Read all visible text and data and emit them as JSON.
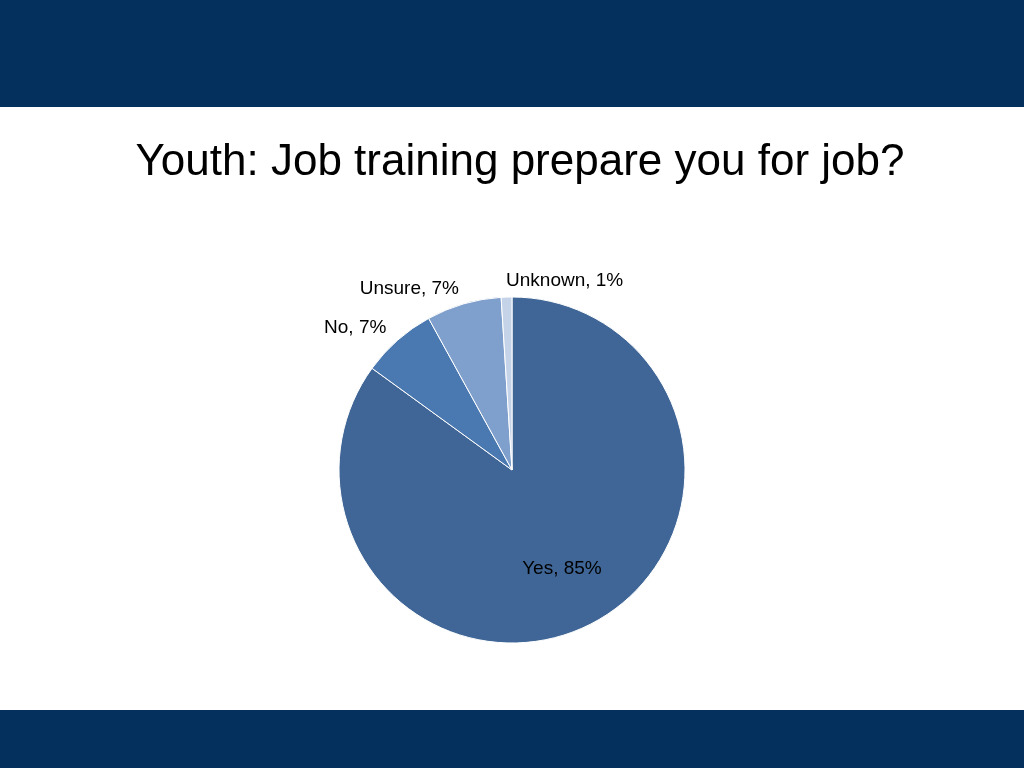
{
  "chart_data": {
    "type": "pie",
    "title": "Youth: Job training prepare you for job?",
    "categories": [
      "Yes",
      "No",
      "Unsure",
      "Unknown"
    ],
    "values": [
      85,
      7,
      7,
      1
    ],
    "colors": [
      "#3f6696",
      "#4a78b0",
      "#7f9fcc",
      "#c5d3e8"
    ],
    "value_labels": [
      "85%",
      "7%",
      "7%",
      "1%"
    ]
  }
}
